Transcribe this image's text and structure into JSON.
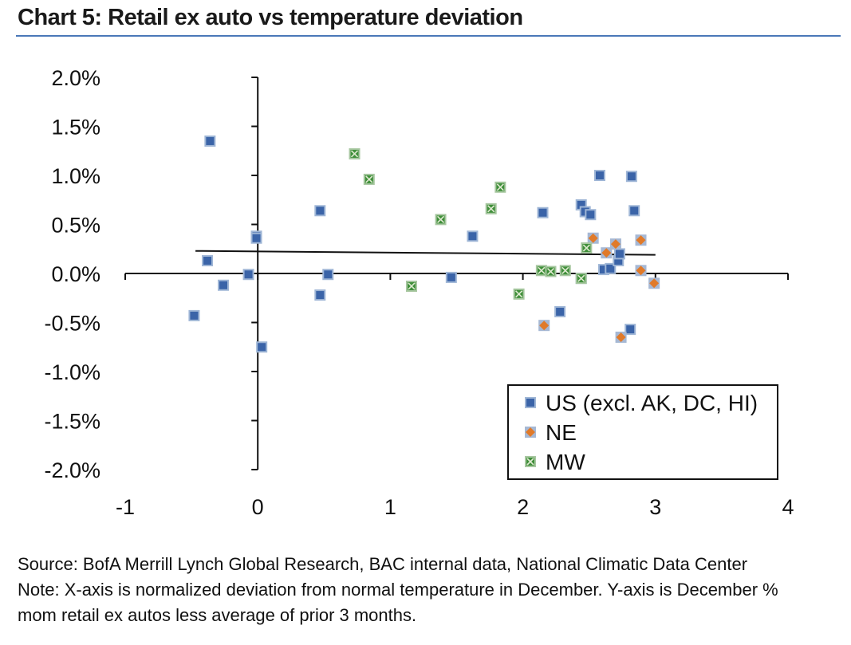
{
  "title": "Chart 5: Retail ex auto vs temperature deviation",
  "footer": {
    "source": "Source: BofA Merrill Lynch Global Research, BAC internal data, National Climatic Data Center",
    "note_line1": "Note: X-axis is normalized deviation from normal temperature in December. Y-axis is  December %",
    "note_line2": "mom retail ex autos less average of prior 3 months."
  },
  "colors": {
    "us": "#3b64a8",
    "ne": "#e07a2a",
    "mw": "#3f8f3a"
  },
  "chart_data": {
    "type": "scatter",
    "title": "Chart 5: Retail ex auto vs temperature deviation",
    "xlabel": "",
    "ylabel": "",
    "xlim": [
      -1,
      4
    ],
    "ylim": [
      -2.0,
      2.0
    ],
    "x_ticks": [
      -1,
      0,
      1,
      2,
      3,
      4
    ],
    "x_tick_labels": [
      "-1",
      "0",
      "1",
      "2",
      "3",
      "4"
    ],
    "y_ticks": [
      2.0,
      1.5,
      1.0,
      0.5,
      0.0,
      -0.5,
      -1.0,
      -1.5,
      -2.0
    ],
    "y_tick_labels": [
      "2.0%",
      "1.5%",
      "1.0%",
      "0.5%",
      "0.0%",
      "-0.5%",
      "-1.0%",
      "-1.5%",
      "-2.0%"
    ],
    "grid": false,
    "legend_position": "bottom-right",
    "trendline": {
      "x": [
        -0.47,
        3.0
      ],
      "y": [
        0.23,
        0.19
      ]
    },
    "series": [
      {
        "name": "US (excl. AK, DC, HI)",
        "marker": "square",
        "points": [
          [
            -0.36,
            1.35
          ],
          [
            -0.48,
            -0.43
          ],
          [
            -0.38,
            0.13
          ],
          [
            -0.26,
            -0.12
          ],
          [
            -0.07,
            -0.01
          ],
          [
            -0.01,
            0.38
          ],
          [
            -0.01,
            0.36
          ],
          [
            0.03,
            -0.75
          ],
          [
            0.47,
            0.64
          ],
          [
            0.47,
            -0.22
          ],
          [
            0.53,
            -0.01
          ],
          [
            1.46,
            -0.04
          ],
          [
            1.62,
            0.38
          ],
          [
            2.15,
            0.62
          ],
          [
            2.28,
            -0.39
          ],
          [
            2.44,
            0.7
          ],
          [
            2.47,
            0.63
          ],
          [
            2.51,
            0.6
          ],
          [
            2.58,
            1.0
          ],
          [
            2.61,
            0.04
          ],
          [
            2.66,
            0.05
          ],
          [
            2.72,
            0.13
          ],
          [
            2.73,
            0.2
          ],
          [
            2.81,
            -0.57
          ],
          [
            2.82,
            0.99
          ],
          [
            2.84,
            0.64
          ],
          [
            2.44,
            -0.05
          ]
        ]
      },
      {
        "name": "NE",
        "marker": "diamond",
        "points": [
          [
            2.16,
            -0.53
          ],
          [
            2.53,
            0.36
          ],
          [
            2.63,
            0.21
          ],
          [
            2.7,
            0.3
          ],
          [
            2.74,
            -0.65
          ],
          [
            2.89,
            0.34
          ],
          [
            2.89,
            0.03
          ],
          [
            2.99,
            -0.1
          ]
        ]
      },
      {
        "name": "MW",
        "marker": "square-x",
        "points": [
          [
            0.73,
            1.22
          ],
          [
            0.84,
            0.96
          ],
          [
            1.16,
            -0.13
          ],
          [
            1.38,
            0.55
          ],
          [
            1.76,
            0.66
          ],
          [
            1.83,
            0.88
          ],
          [
            1.97,
            -0.21
          ],
          [
            2.14,
            0.03
          ],
          [
            2.21,
            0.02
          ],
          [
            2.32,
            0.03
          ],
          [
            2.44,
            -0.05
          ],
          [
            2.48,
            0.26
          ]
        ]
      }
    ]
  }
}
